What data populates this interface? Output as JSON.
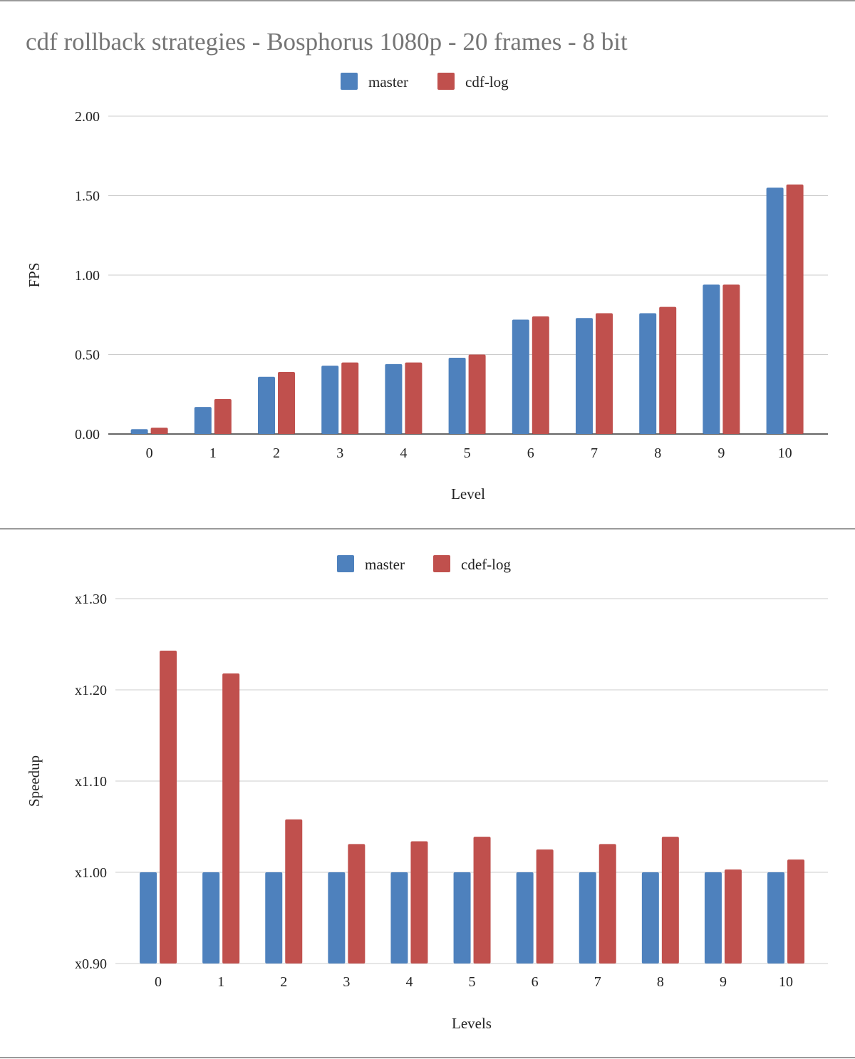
{
  "chart_data": [
    {
      "type": "bar",
      "title": "cdf rollback strategies - Bosphorus 1080p - 20 frames - 8 bit",
      "xlabel": "Level",
      "ylabel": "FPS",
      "categories": [
        "0",
        "1",
        "2",
        "3",
        "4",
        "5",
        "6",
        "7",
        "8",
        "9",
        "10"
      ],
      "series": [
        {
          "name": "master",
          "color": "#4e81bd",
          "values": [
            0.03,
            0.17,
            0.36,
            0.43,
            0.44,
            0.48,
            0.72,
            0.73,
            0.76,
            0.94,
            1.55
          ]
        },
        {
          "name": "cdf-log",
          "color": "#c0504d",
          "values": [
            0.04,
            0.22,
            0.39,
            0.45,
            0.45,
            0.5,
            0.74,
            0.76,
            0.8,
            0.94,
            1.57
          ]
        }
      ],
      "ylim": [
        0,
        2
      ],
      "yticks": [
        0,
        0.5,
        1.0,
        1.5,
        2.0
      ],
      "ytick_labels": [
        "0.00",
        "0.50",
        "1.00",
        "1.50",
        "2.00"
      ],
      "legend": "top-center",
      "grid": true
    },
    {
      "type": "bar",
      "title": "",
      "xlabel": "Levels",
      "ylabel": "Speedup",
      "categories": [
        "0",
        "1",
        "2",
        "3",
        "4",
        "5",
        "6",
        "7",
        "8",
        "9",
        "10"
      ],
      "series": [
        {
          "name": "master",
          "color": "#4e81bd",
          "values": [
            1.0,
            1.0,
            1.0,
            1.0,
            1.0,
            1.0,
            1.0,
            1.0,
            1.0,
            1.0,
            1.0
          ]
        },
        {
          "name": "cdef-log",
          "color": "#c0504d",
          "values": [
            1.243,
            1.218,
            1.058,
            1.031,
            1.034,
            1.039,
            1.025,
            1.031,
            1.039,
            1.003,
            1.014
          ]
        }
      ],
      "ylim": [
        0.9,
        1.3
      ],
      "yticks": [
        0.9,
        1.0,
        1.1,
        1.2,
        1.3
      ],
      "ytick_labels": [
        "x0.90",
        "x1.00",
        "x1.10",
        "x1.20",
        "x1.30"
      ],
      "legend": "top-center",
      "grid": true
    }
  ]
}
